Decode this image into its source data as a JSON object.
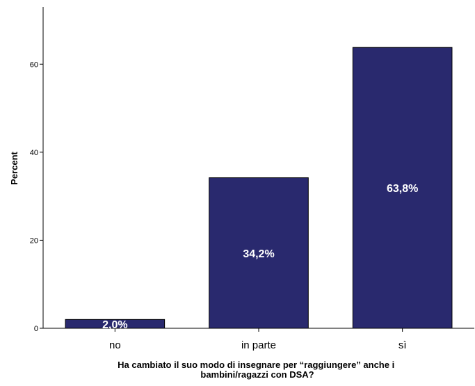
{
  "chart_data": {
    "type": "bar",
    "categories": [
      "no",
      "in parte",
      "sì"
    ],
    "values": [
      2.0,
      34.2,
      63.8
    ],
    "data_labels": [
      "2,0%",
      "34,2%",
      "63,8%"
    ],
    "ylabel": "Percent",
    "xlabel_lines": [
      "Ha cambiato il suo modo di insegnare per “raggiungere” anche i",
      "bambini/ragazzi con DSA?"
    ],
    "ylim": [
      0,
      73
    ],
    "yticks": [
      0,
      20,
      40,
      60
    ],
    "grid": false,
    "bar_color": "#29296e",
    "bar_stroke": "#000000"
  }
}
